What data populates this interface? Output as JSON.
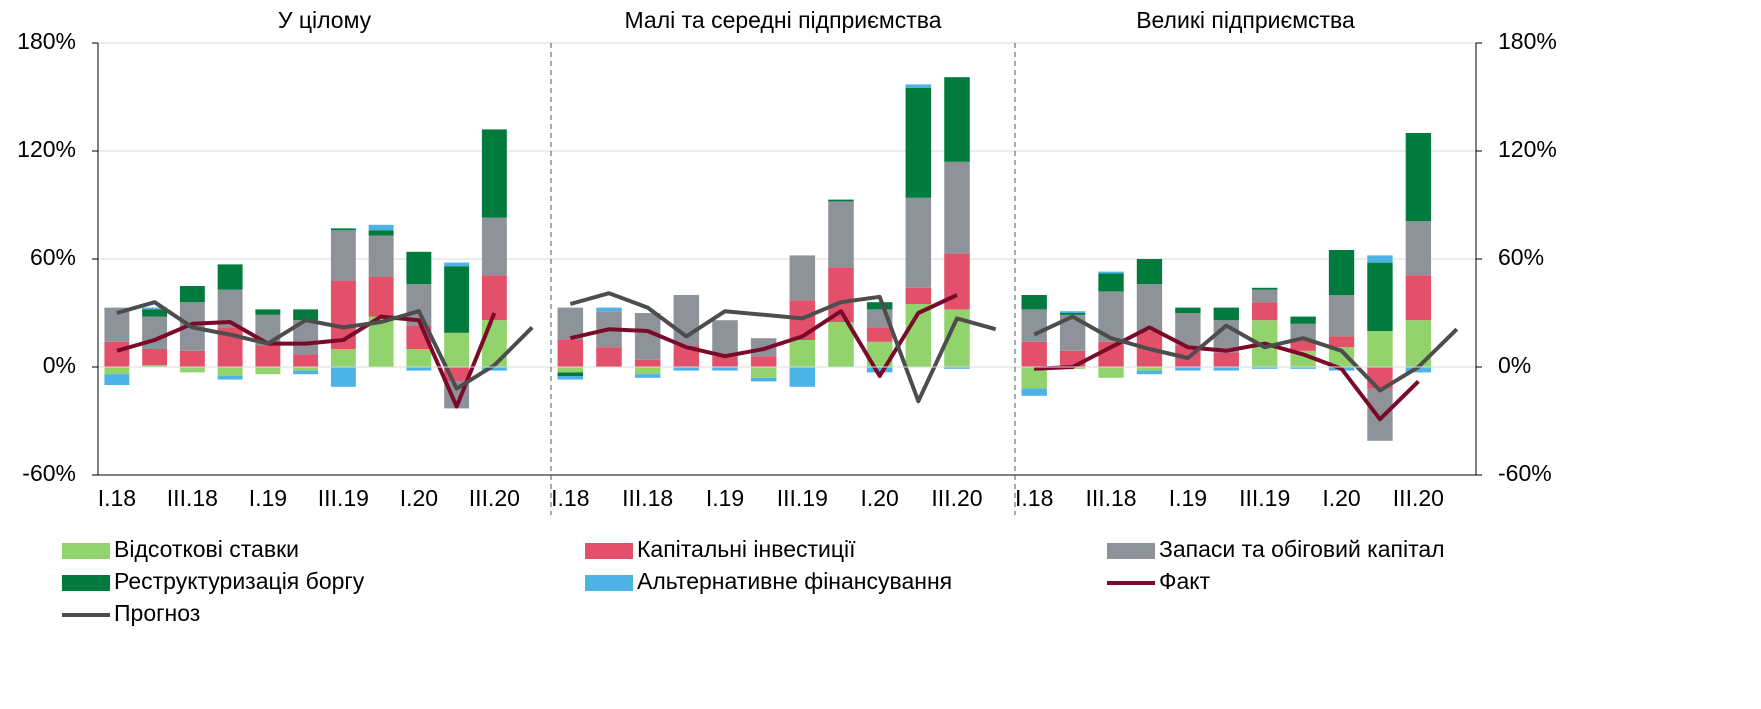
{
  "chart_data": [
    {
      "type": "bar",
      "title": "У цілому",
      "categories": [
        "I.18",
        null,
        "III.18",
        null,
        "I.19",
        null,
        "III.19",
        null,
        "I.20",
        null,
        "III.20",
        null
      ],
      "ylim": [
        -60,
        180
      ],
      "yticks": [
        {
          "value": -60,
          "label": "-60%"
        },
        {
          "value": 0,
          "label": "0%"
        },
        {
          "value": 60,
          "label": "60%"
        },
        {
          "value": 120,
          "label": "120%"
        },
        {
          "value": 180,
          "label": "180%"
        }
      ],
      "grid": true,
      "series": [
        {
          "name": "Відсоткові ставки",
          "type": "bar",
          "color": "#92d36e",
          "values": [
            -4,
            1,
            -3,
            -5,
            -4,
            -2,
            10,
            28,
            10,
            19,
            26,
            null
          ]
        },
        {
          "name": "Капітальні інвестиції",
          "type": "bar",
          "color": "#e2506a",
          "values": [
            14,
            9,
            9,
            22,
            12,
            7,
            38,
            22,
            13,
            -8,
            25,
            null
          ]
        },
        {
          "name": "Запаси та обіговий капітал",
          "type": "bar",
          "color": "#8d9399",
          "values": [
            19,
            18,
            27,
            21,
            17,
            19,
            28,
            23,
            23,
            -15,
            32,
            null
          ]
        },
        {
          "name": "Реструктуризація боргу",
          "type": "bar",
          "color": "#007a3d",
          "values": [
            0,
            4,
            9,
            14,
            3,
            6,
            1,
            3,
            18,
            37,
            49,
            null
          ]
        },
        {
          "name": "Альтернативне фінансування",
          "type": "bar",
          "color": "#4db3e6",
          "values": [
            -6,
            1,
            0,
            -2,
            0,
            -2,
            -11,
            3,
            -2,
            2,
            -2,
            null
          ]
        },
        {
          "name": "Факт",
          "type": "line",
          "color": "#7b0a2a",
          "values": [
            9,
            15,
            24,
            25,
            13,
            13,
            15,
            28,
            26,
            -22,
            30,
            null
          ]
        },
        {
          "name": "Прогноз",
          "type": "line",
          "color": "#4d4d4d",
          "values": [
            30,
            36,
            22,
            18,
            13,
            26,
            22,
            25,
            31,
            -12,
            1,
            22
          ]
        }
      ]
    },
    {
      "type": "bar",
      "title": "Малі та середні підприємства",
      "categories": [
        "I.18",
        null,
        "III.18",
        null,
        "I.19",
        null,
        "III.19",
        null,
        "I.20",
        null,
        "III.20",
        null
      ],
      "ylim": [
        -60,
        180
      ],
      "yticks": [
        -60,
        0,
        60,
        120,
        180
      ],
      "grid": true,
      "series": [
        {
          "name": "Відсоткові ставки",
          "type": "bar",
          "color": "#92d36e",
          "values": [
            -3,
            0,
            -4,
            0,
            0,
            -6,
            15,
            25,
            14,
            35,
            32,
            null
          ]
        },
        {
          "name": "Капітальні інвестиції",
          "type": "bar",
          "color": "#e2506a",
          "values": [
            15,
            11,
            4,
            12,
            6,
            6,
            22,
            30,
            8,
            9,
            31,
            null
          ]
        },
        {
          "name": "Запаси та обіговий капітал",
          "type": "bar",
          "color": "#8d9399",
          "values": [
            18,
            20,
            26,
            28,
            20,
            10,
            25,
            37,
            10,
            50,
            51,
            null
          ]
        },
        {
          "name": "Реструктуризація боргу",
          "type": "bar",
          "color": "#007a3d",
          "values": [
            -2,
            0,
            0,
            0,
            0,
            0,
            0,
            1,
            4,
            61,
            47,
            null
          ]
        },
        {
          "name": "Альтернативне фінансування",
          "type": "bar",
          "color": "#4db3e6",
          "values": [
            -2,
            2,
            -2,
            -2,
            -2,
            -2,
            -11,
            0,
            -3,
            2,
            -1,
            null
          ]
        },
        {
          "name": "Факт",
          "type": "line",
          "color": "#7b0a2a",
          "values": [
            16,
            21,
            20,
            11,
            6,
            10,
            17,
            31,
            -5,
            30,
            40,
            null
          ]
        },
        {
          "name": "Прогноз",
          "type": "line",
          "color": "#4d4d4d",
          "values": [
            35,
            41,
            33,
            17,
            31,
            29,
            27,
            36,
            39,
            -19,
            27,
            21
          ]
        }
      ]
    },
    {
      "type": "bar",
      "title": "Великі підприємства",
      "categories": [
        "I.18",
        null,
        "III.18",
        null,
        "I.19",
        null,
        "III.19",
        null,
        "I.20",
        null,
        "III.20",
        null
      ],
      "ylim": [
        -60,
        180
      ],
      "y2ticks": [
        {
          "value": -60,
          "label": "-60%"
        },
        {
          "value": 0,
          "label": "0%"
        },
        {
          "value": 60,
          "label": "60%"
        },
        {
          "value": 120,
          "label": "120%"
        },
        {
          "value": 180,
          "label": "180%"
        }
      ],
      "grid": true,
      "series": [
        {
          "name": "Відсоткові ставки",
          "type": "bar",
          "color": "#92d36e",
          "values": [
            -12,
            -1,
            -6,
            -2,
            0,
            0,
            26,
            9,
            11,
            20,
            26,
            null
          ]
        },
        {
          "name": "Капітальні інвестиції",
          "type": "bar",
          "color": "#e2506a",
          "values": [
            14,
            9,
            14,
            20,
            12,
            8,
            10,
            6,
            6,
            -12,
            25,
            null
          ]
        },
        {
          "name": "Запаси та обіговий капітал",
          "type": "bar",
          "color": "#8d9399",
          "values": [
            18,
            20,
            28,
            26,
            18,
            18,
            7,
            9,
            23,
            -29,
            30,
            null
          ]
        },
        {
          "name": "Реструктуризація боргу",
          "type": "bar",
          "color": "#007a3d",
          "values": [
            8,
            1,
            10,
            14,
            3,
            7,
            1,
            4,
            25,
            38,
            49,
            null
          ]
        },
        {
          "name": "Альтернативне фінансування",
          "type": "bar",
          "color": "#4db3e6",
          "values": [
            -4,
            1,
            1,
            -2,
            -2,
            -2,
            -1,
            -1,
            -2,
            4,
            -3,
            null
          ]
        },
        {
          "name": "Факт",
          "type": "line",
          "color": "#7b0a2a",
          "values": [
            -1,
            0,
            11,
            22,
            11,
            9,
            13,
            7,
            -1,
            -29,
            -8,
            null
          ]
        },
        {
          "name": "Прогноз",
          "type": "line",
          "color": "#4d4d4d",
          "values": [
            18,
            28,
            16,
            10,
            5,
            23,
            11,
            16,
            9,
            -13,
            0,
            21
          ]
        }
      ]
    }
  ]
}
